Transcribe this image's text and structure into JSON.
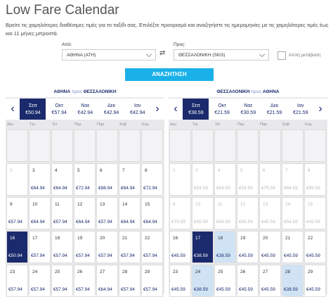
{
  "header": {
    "title": "Low Fare Calendar",
    "intro": "Βρείτε τις χαμηλότερες διαθέσιμες τιμές για το ταξίδι σας. Επιλέξτε προορισμό και αναζητήστε τις ημερομηνίες με τις χαμηλότερες τιμές έως και 11 μήνες μπροστά."
  },
  "form": {
    "from_label": "Από:",
    "from_value": "ΑΘΗΝΑ (ATH)",
    "to_label": "Προς:",
    "to_value": "ΘΕΣΣΑΛΟΝΙΚΗ (SKG)",
    "one_way": "Απλή μετάβαση",
    "search": "ΑΝΑΖΗΤΗΣΗ"
  },
  "calendars": [
    {
      "origin": "ΑΘΗΝΑ",
      "connector": "προς",
      "destination": "ΘΕΣΣΑΛΟΝΙΚΗ",
      "months": [
        {
          "name": "Σεπ",
          "price": "€50.94",
          "selected": true
        },
        {
          "name": "Οκτ",
          "price": "€57.94"
        },
        {
          "name": "Νοε",
          "price": "€42.94"
        },
        {
          "name": "Δεκ",
          "price": "€42.94"
        },
        {
          "name": "Ιαν",
          "price": "€42.94"
        }
      ],
      "weekdays": [
        "Δευ",
        "Τρι",
        "Τετ",
        "Πεμ",
        "Παρ",
        "Σαβ",
        "Κυρ"
      ],
      "weeks": [
        [
          null,
          null,
          null,
          null,
          null,
          null,
          null
        ],
        [
          {
            "day": 2,
            "state": "disabled"
          },
          {
            "day": 3,
            "price": "€64.94"
          },
          {
            "day": 4,
            "price": "€64.94"
          },
          {
            "day": 5,
            "price": "€72.94"
          },
          {
            "day": 6,
            "price": "€88.94"
          },
          {
            "day": 7,
            "price": "€64.94"
          },
          {
            "day": 8,
            "price": "€72.94"
          }
        ],
        [
          {
            "day": 9,
            "price": "€57.94"
          },
          {
            "day": 10,
            "price": "€64.94"
          },
          {
            "day": 11,
            "price": "€57.94"
          },
          {
            "day": 12,
            "price": "€64.94"
          },
          {
            "day": 13,
            "price": "€57.94"
          },
          {
            "day": 14,
            "price": "€64.94"
          },
          {
            "day": 15,
            "price": "€64.94"
          }
        ],
        [
          {
            "day": 16,
            "price": "€50.94",
            "state": "selected"
          },
          {
            "day": 17,
            "price": "€57.94"
          },
          {
            "day": 18,
            "price": "€57.94"
          },
          {
            "day": 19,
            "price": "€57.94"
          },
          {
            "day": 20,
            "price": "€57.94"
          },
          {
            "day": 21,
            "price": "€57.94"
          },
          {
            "day": 22,
            "price": "€57.94"
          }
        ],
        [
          {
            "day": 23,
            "price": "€57.94"
          },
          {
            "day": 24,
            "price": "€57.94"
          },
          {
            "day": 25,
            "price": "€57.94"
          },
          {
            "day": 26,
            "price": "€57.94"
          },
          {
            "day": 27,
            "price": "€64.94"
          },
          {
            "day": 28,
            "price": "€57.94"
          },
          {
            "day": 29,
            "price": "€57.94"
          }
        ]
      ]
    },
    {
      "origin": "ΘΕΣΣΑΛΟΝΙΚΗ",
      "connector": "προς",
      "destination": "ΑΘΗΝΑ",
      "months": [
        {
          "name": "Σεπ",
          "price": "€38.59",
          "selected": true
        },
        {
          "name": "Οκτ",
          "price": "€21.59"
        },
        {
          "name": "Νοε",
          "price": "€30.59"
        },
        {
          "name": "Δεκ",
          "price": "€21.59"
        },
        {
          "name": "Ιαν",
          "price": "€21.59"
        }
      ],
      "weekdays": [
        "Δευ",
        "Τρι",
        "Τετ",
        "Πεμ",
        "Παρ",
        "Σαβ",
        "Κυρ"
      ],
      "weeks": [
        [
          null,
          null,
          null,
          null,
          null,
          null,
          null
        ],
        [
          {
            "day": 2,
            "state": "disabled"
          },
          {
            "day": 3,
            "price": "€54.59",
            "state": "disabled"
          },
          {
            "day": 4,
            "price": "€54.59",
            "state": "disabled"
          },
          {
            "day": 5,
            "price": "€54.59",
            "state": "disabled"
          },
          {
            "day": 6,
            "price": "€75.59",
            "state": "disabled"
          },
          {
            "day": 7,
            "price": "€64.59",
            "state": "disabled"
          },
          {
            "day": 8,
            "price": "€99.59",
            "state": "disabled"
          }
        ],
        [
          {
            "day": 9,
            "price": "€75.59",
            "state": "disabled"
          },
          {
            "day": 10,
            "price": "€45.59",
            "state": "disabled"
          },
          {
            "day": 11,
            "price": "€45.59",
            "state": "disabled"
          },
          {
            "day": 12,
            "price": "€45.59",
            "state": "disabled"
          },
          {
            "day": 13,
            "price": "€45.59",
            "state": "disabled"
          },
          {
            "day": 14,
            "price": "€54.59",
            "state": "disabled"
          },
          {
            "day": 15,
            "price": "€45.59",
            "state": "disabled"
          }
        ],
        [
          {
            "day": 16,
            "price": "€45.59"
          },
          {
            "day": 17,
            "price": "€38.59",
            "state": "selected"
          },
          {
            "day": 18,
            "price": "€38.59",
            "state": "low"
          },
          {
            "day": 19,
            "price": "€45.59"
          },
          {
            "day": 20,
            "price": "€45.59"
          },
          {
            "day": 21,
            "price": "€45.59"
          },
          {
            "day": 22,
            "price": "€45.59"
          }
        ],
        [
          {
            "day": 23,
            "price": "€45.59"
          },
          {
            "day": 24,
            "price": "€38.59",
            "state": "low"
          },
          {
            "day": 25,
            "price": "€45.59"
          },
          {
            "day": 26,
            "price": "€45.59"
          },
          {
            "day": 27,
            "price": "€45.59"
          },
          {
            "day": 28,
            "price": "€38.59",
            "state": "low"
          },
          {
            "day": 29,
            "price": "€45.59"
          }
        ]
      ]
    }
  ]
}
